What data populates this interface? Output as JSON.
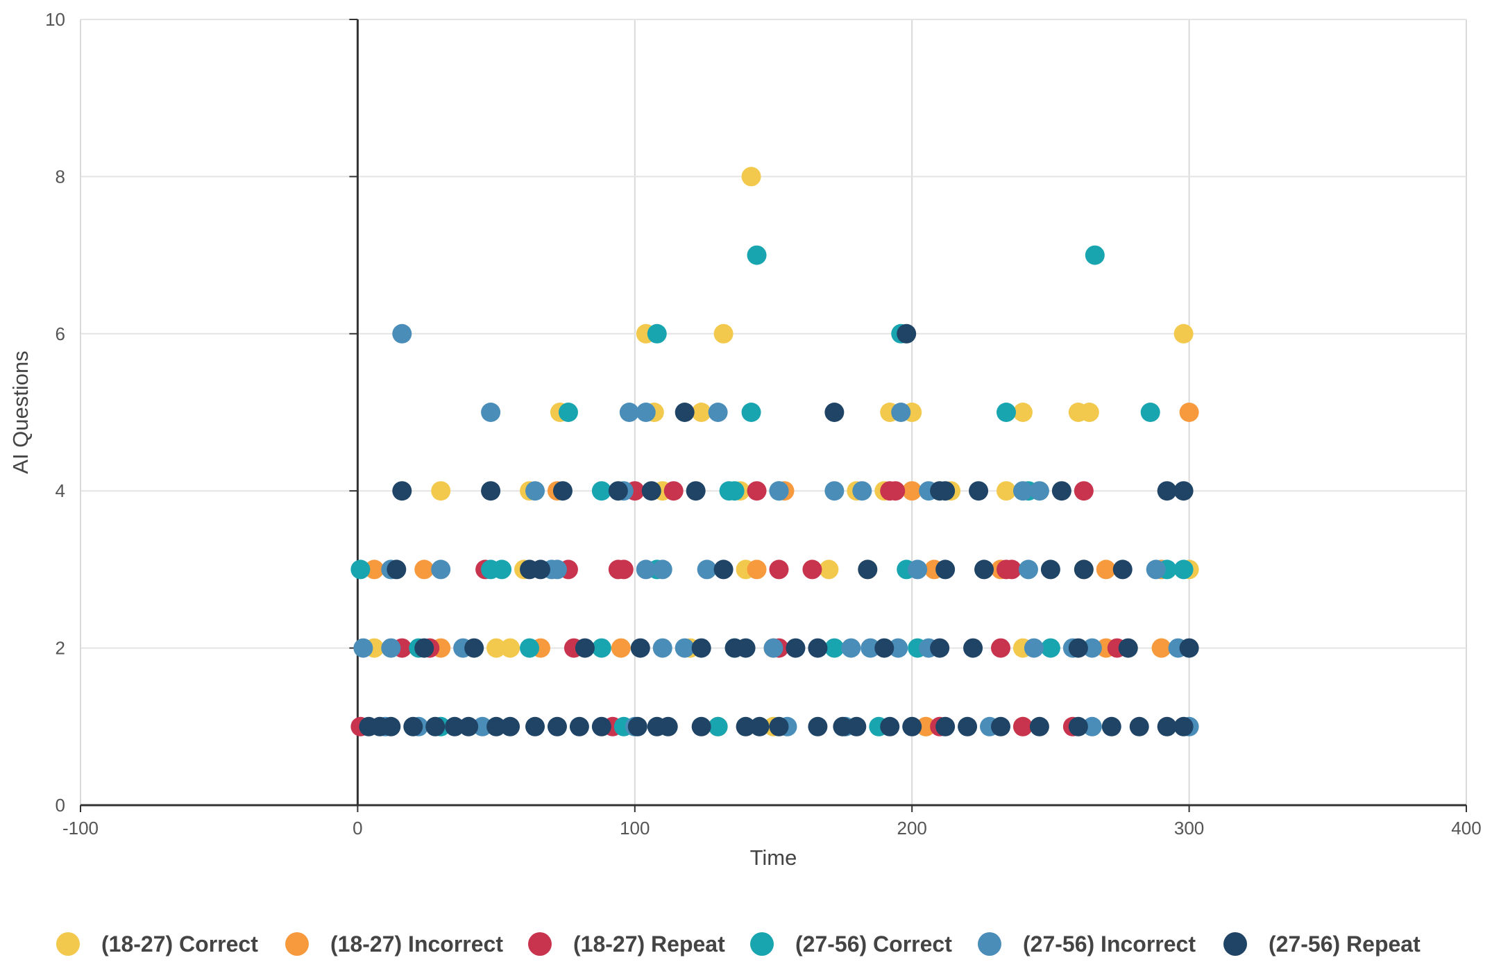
{
  "chart_data": {
    "type": "scatter",
    "title": "",
    "xlabel": "Time",
    "ylabel": "AI Questions",
    "xlim": [
      -100,
      400
    ],
    "ylim": [
      0,
      10
    ],
    "xticks": [
      "-100",
      "0",
      "100",
      "200",
      "300",
      "400"
    ],
    "yticks": [
      "0",
      "2",
      "4",
      "6",
      "8",
      "10"
    ],
    "grid": true,
    "legend_position": "bottom",
    "series": [
      {
        "name": "(18-27) Correct",
        "color": "#F2C94C",
        "points": [
          [
            142,
            8
          ],
          [
            104,
            6
          ],
          [
            132,
            6
          ],
          [
            298,
            6
          ],
          [
            73,
            5
          ],
          [
            107,
            5
          ],
          [
            124,
            5
          ],
          [
            192,
            5
          ],
          [
            200,
            5
          ],
          [
            240,
            5
          ],
          [
            260,
            5
          ],
          [
            264,
            5
          ],
          [
            30,
            4
          ],
          [
            62,
            4
          ],
          [
            110,
            4
          ],
          [
            138,
            4
          ],
          [
            180,
            4
          ],
          [
            190,
            4
          ],
          [
            214,
            4
          ],
          [
            234,
            4
          ],
          [
            60,
            3
          ],
          [
            140,
            3
          ],
          [
            170,
            3
          ],
          [
            184,
            3
          ],
          [
            262,
            3
          ],
          [
            300,
            3
          ],
          [
            6,
            2
          ],
          [
            50,
            2
          ],
          [
            55,
            2
          ],
          [
            120,
            2
          ],
          [
            240,
            2
          ],
          [
            290,
            2
          ],
          [
            150,
            1
          ],
          [
            205,
            1
          ],
          [
            240,
            1
          ]
        ]
      },
      {
        "name": "(18-27) Incorrect",
        "color": "#F79A3E",
        "points": [
          [
            300,
            5
          ],
          [
            72,
            4
          ],
          [
            154,
            4
          ],
          [
            200,
            4
          ],
          [
            6,
            3
          ],
          [
            24,
            3
          ],
          [
            144,
            3
          ],
          [
            208,
            3
          ],
          [
            232,
            3
          ],
          [
            270,
            3
          ],
          [
            290,
            3
          ],
          [
            30,
            2
          ],
          [
            66,
            2
          ],
          [
            95,
            2
          ],
          [
            150,
            2
          ],
          [
            270,
            2
          ],
          [
            290,
            2
          ],
          [
            130,
            1
          ],
          [
            205,
            1
          ]
        ]
      },
      {
        "name": "(18-27) Repeat",
        "color": "#C8344E",
        "points": [
          [
            100,
            4
          ],
          [
            114,
            4
          ],
          [
            144,
            4
          ],
          [
            192,
            4
          ],
          [
            194,
            4
          ],
          [
            262,
            4
          ],
          [
            46,
            3
          ],
          [
            76,
            3
          ],
          [
            94,
            3
          ],
          [
            96,
            3
          ],
          [
            152,
            3
          ],
          [
            164,
            3
          ],
          [
            234,
            3
          ],
          [
            236,
            3
          ],
          [
            16,
            2
          ],
          [
            26,
            2
          ],
          [
            78,
            2
          ],
          [
            152,
            2
          ],
          [
            232,
            2
          ],
          [
            274,
            2
          ],
          [
            1,
            1
          ],
          [
            92,
            1
          ],
          [
            210,
            1
          ],
          [
            240,
            1
          ],
          [
            258,
            1
          ]
        ]
      },
      {
        "name": "(27-56) Correct",
        "color": "#19A5B0",
        "points": [
          [
            144,
            7
          ],
          [
            266,
            7
          ],
          [
            108,
            6
          ],
          [
            196,
            6
          ],
          [
            76,
            5
          ],
          [
            142,
            5
          ],
          [
            234,
            5
          ],
          [
            286,
            5
          ],
          [
            88,
            4
          ],
          [
            134,
            4
          ],
          [
            136,
            4
          ],
          [
            152,
            4
          ],
          [
            242,
            4
          ],
          [
            1,
            3
          ],
          [
            48,
            3
          ],
          [
            52,
            3
          ],
          [
            108,
            3
          ],
          [
            198,
            3
          ],
          [
            292,
            3
          ],
          [
            298,
            3
          ],
          [
            22,
            2
          ],
          [
            62,
            2
          ],
          [
            88,
            2
          ],
          [
            136,
            2
          ],
          [
            172,
            2
          ],
          [
            202,
            2
          ],
          [
            250,
            2
          ],
          [
            30,
            1
          ],
          [
            96,
            1
          ],
          [
            130,
            1
          ],
          [
            188,
            1
          ]
        ]
      },
      {
        "name": "(27-56) Incorrect",
        "color": "#4A8DB8",
        "points": [
          [
            16,
            6
          ],
          [
            48,
            5
          ],
          [
            98,
            5
          ],
          [
            104,
            5
          ],
          [
            130,
            5
          ],
          [
            196,
            5
          ],
          [
            64,
            4
          ],
          [
            96,
            4
          ],
          [
            152,
            4
          ],
          [
            172,
            4
          ],
          [
            182,
            4
          ],
          [
            206,
            4
          ],
          [
            240,
            4
          ],
          [
            246,
            4
          ],
          [
            12,
            3
          ],
          [
            30,
            3
          ],
          [
            72,
            3
          ],
          [
            70,
            3
          ],
          [
            104,
            3
          ],
          [
            110,
            3
          ],
          [
            126,
            3
          ],
          [
            202,
            3
          ],
          [
            242,
            3
          ],
          [
            288,
            3
          ],
          [
            2,
            2
          ],
          [
            12,
            2
          ],
          [
            38,
            2
          ],
          [
            110,
            2
          ],
          [
            118,
            2
          ],
          [
            150,
            2
          ],
          [
            178,
            2
          ],
          [
            185,
            2
          ],
          [
            195,
            2
          ],
          [
            206,
            2
          ],
          [
            244,
            2
          ],
          [
            258,
            2
          ],
          [
            265,
            2
          ],
          [
            296,
            2
          ],
          [
            10,
            1
          ],
          [
            22,
            1
          ],
          [
            45,
            1
          ],
          [
            100,
            1
          ],
          [
            155,
            1
          ],
          [
            176,
            1
          ],
          [
            228,
            1
          ],
          [
            265,
            1
          ],
          [
            300,
            1
          ]
        ]
      },
      {
        "name": "(27-56) Repeat",
        "color": "#1F4466",
        "points": [
          [
            198,
            6
          ],
          [
            118,
            5
          ],
          [
            172,
            5
          ],
          [
            16,
            4
          ],
          [
            48,
            4
          ],
          [
            74,
            4
          ],
          [
            94,
            4
          ],
          [
            106,
            4
          ],
          [
            122,
            4
          ],
          [
            210,
            4
          ],
          [
            212,
            4
          ],
          [
            224,
            4
          ],
          [
            254,
            4
          ],
          [
            292,
            4
          ],
          [
            298,
            4
          ],
          [
            14,
            3
          ],
          [
            62,
            3
          ],
          [
            66,
            3
          ],
          [
            132,
            3
          ],
          [
            184,
            3
          ],
          [
            212,
            3
          ],
          [
            226,
            3
          ],
          [
            250,
            3
          ],
          [
            262,
            3
          ],
          [
            276,
            3
          ],
          [
            24,
            2
          ],
          [
            42,
            2
          ],
          [
            82,
            2
          ],
          [
            102,
            2
          ],
          [
            124,
            2
          ],
          [
            136,
            2
          ],
          [
            140,
            2
          ],
          [
            158,
            2
          ],
          [
            166,
            2
          ],
          [
            190,
            2
          ],
          [
            210,
            2
          ],
          [
            222,
            2
          ],
          [
            260,
            2
          ],
          [
            278,
            2
          ],
          [
            300,
            2
          ],
          [
            4,
            1
          ],
          [
            8,
            1
          ],
          [
            12,
            1
          ],
          [
            20,
            1
          ],
          [
            28,
            1
          ],
          [
            35,
            1
          ],
          [
            40,
            1
          ],
          [
            50,
            1
          ],
          [
            55,
            1
          ],
          [
            64,
            1
          ],
          [
            72,
            1
          ],
          [
            80,
            1
          ],
          [
            88,
            1
          ],
          [
            101,
            1
          ],
          [
            108,
            1
          ],
          [
            112,
            1
          ],
          [
            124,
            1
          ],
          [
            140,
            1
          ],
          [
            145,
            1
          ],
          [
            152,
            1
          ],
          [
            166,
            1
          ],
          [
            175,
            1
          ],
          [
            180,
            1
          ],
          [
            192,
            1
          ],
          [
            200,
            1
          ],
          [
            212,
            1
          ],
          [
            220,
            1
          ],
          [
            232,
            1
          ],
          [
            246,
            1
          ],
          [
            260,
            1
          ],
          [
            272,
            1
          ],
          [
            282,
            1
          ],
          [
            292,
            1
          ],
          [
            298,
            1
          ]
        ]
      }
    ]
  }
}
